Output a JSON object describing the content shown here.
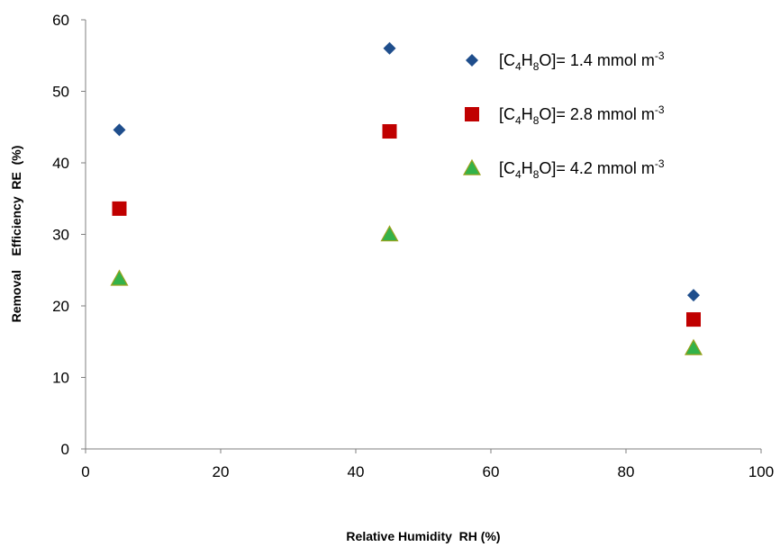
{
  "chart_data": {
    "type": "scatter",
    "xlabel": "Relative Humidity  RH (%)",
    "ylabel": "Removal    Efficiency  RE  (%)",
    "xlim": [
      0,
      100
    ],
    "ylim": [
      0,
      60
    ],
    "xticks": [
      0,
      20,
      40,
      60,
      80,
      100
    ],
    "yticks": [
      0,
      10,
      20,
      30,
      40,
      50,
      60
    ],
    "grid": false,
    "legend_position": "top-right",
    "series": [
      {
        "name": "[C4H8O]= 1.4 mmol m-3",
        "legend": {
          "open": "[C",
          "sub1": "4",
          "mid1": "H",
          "sub2": "8",
          "mid2": "O]= 1.4 mmol m",
          "sup": "-3"
        },
        "marker": "diamond",
        "color": "#1f4e8c",
        "x": [
          5,
          45,
          90
        ],
        "y": [
          44.6,
          56.0,
          21.5
        ]
      },
      {
        "name": "[C4H8O]= 2.8 mmol m-3",
        "legend": {
          "open": "[C",
          "sub1": "4",
          "mid1": "H",
          "sub2": "8",
          "mid2": "O]= 2.8 mmol m",
          "sup": "-3"
        },
        "marker": "square",
        "color": "#c00000",
        "x": [
          5,
          45,
          90
        ],
        "y": [
          33.6,
          44.4,
          18.1
        ]
      },
      {
        "name": "[C4H8O]= 4.2 mmol m-3",
        "legend": {
          "open": "[C",
          "sub1": "4",
          "mid1": "H",
          "sub2": "8",
          "mid2": "O]= 4.2 mmol m",
          "sup": "-3"
        },
        "marker": "triangle",
        "color": "#33b24a",
        "edge_color": "#9aa11c",
        "x": [
          5,
          45,
          90
        ],
        "y": [
          23.8,
          30.0,
          14.1
        ]
      }
    ]
  }
}
